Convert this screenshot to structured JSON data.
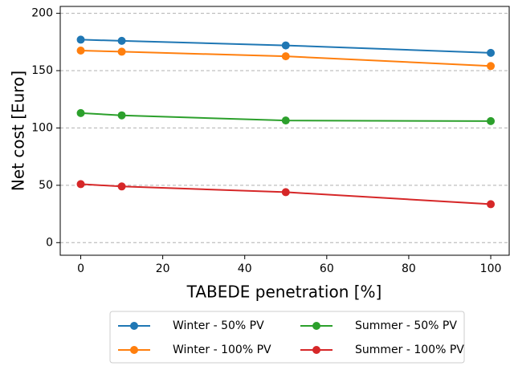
{
  "chart_data": {
    "type": "line",
    "x": [
      0,
      10,
      50,
      100
    ],
    "x_label": "TABEDE penetration [%]",
    "y_label": "Net cost [Euro]",
    "xlim": [
      -5,
      104.5
    ],
    "ylim": [
      -11,
      206
    ],
    "xticks": [
      0,
      20,
      40,
      60,
      80,
      100
    ],
    "yticks": [
      0,
      50,
      100,
      150,
      200
    ],
    "grid": true,
    "legend_position": "below",
    "series": [
      {
        "name": "Winter - 50% PV",
        "color": "#1f77b4",
        "values": [
          177,
          176,
          172,
          165.5
        ]
      },
      {
        "name": "Winter - 100% PV",
        "color": "#ff7f0e",
        "values": [
          167.5,
          166.5,
          162.5,
          154
        ]
      },
      {
        "name": "Summer - 50% PV",
        "color": "#2ca02c",
        "values": [
          113,
          111,
          106.5,
          106
        ]
      },
      {
        "name": "Summer - 100% PV",
        "color": "#d62728",
        "values": [
          51,
          49,
          44,
          33.5
        ]
      }
    ]
  }
}
